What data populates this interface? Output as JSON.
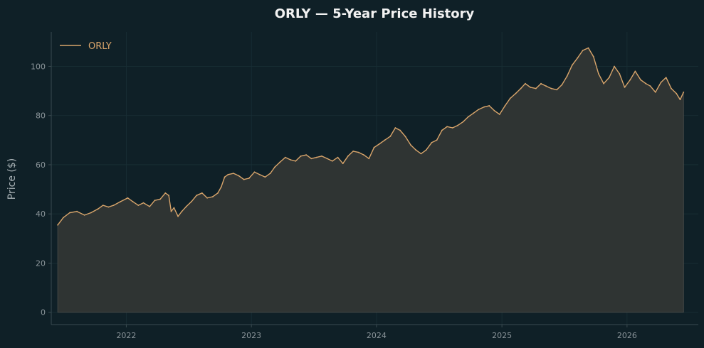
{
  "chart_data": {
    "type": "area",
    "title": "ORLY — 5-Year Price History",
    "xlabel": "",
    "ylabel": "Price ($)",
    "x_ticks": [
      "2022",
      "2023",
      "2024",
      "2025",
      "2026"
    ],
    "y_ticks": [
      0,
      20,
      40,
      60,
      80,
      100
    ],
    "xlim": [
      "2021-05-27",
      "2026-07-28"
    ],
    "ylim": [
      -5,
      114
    ],
    "grid": true,
    "legend_position": "top-left",
    "series": [
      {
        "name": "ORLY",
        "color": "#d9a56b",
        "fill_color": "#2f3433",
        "points": [
          [
            "2021-06-15",
            35.5
          ],
          [
            "2021-07-01",
            38.5
          ],
          [
            "2021-07-20",
            40.5
          ],
          [
            "2021-08-10",
            41.0
          ],
          [
            "2021-09-01",
            39.5
          ],
          [
            "2021-09-20",
            40.5
          ],
          [
            "2021-10-10",
            42.0
          ],
          [
            "2021-10-25",
            43.5
          ],
          [
            "2021-11-10",
            42.8
          ],
          [
            "2021-11-25",
            43.5
          ],
          [
            "2021-12-15",
            45.0
          ],
          [
            "2022-01-05",
            46.5
          ],
          [
            "2022-01-20",
            45.0
          ],
          [
            "2022-02-05",
            43.5
          ],
          [
            "2022-02-20",
            44.5
          ],
          [
            "2022-03-10",
            43.0
          ],
          [
            "2022-03-25",
            45.5
          ],
          [
            "2022-04-10",
            46.0
          ],
          [
            "2022-04-25",
            48.5
          ],
          [
            "2022-05-05",
            47.5
          ],
          [
            "2022-05-12",
            41.0
          ],
          [
            "2022-05-20",
            42.5
          ],
          [
            "2022-06-01",
            39.0
          ],
          [
            "2022-06-12",
            41.0
          ],
          [
            "2022-06-25",
            43.0
          ],
          [
            "2022-07-10",
            45.0
          ],
          [
            "2022-07-25",
            47.5
          ],
          [
            "2022-08-10",
            48.5
          ],
          [
            "2022-08-25",
            46.5
          ],
          [
            "2022-09-10",
            47.0
          ],
          [
            "2022-09-25",
            48.5
          ],
          [
            "2022-10-05",
            51.0
          ],
          [
            "2022-10-15",
            55.0
          ],
          [
            "2022-10-25",
            56.0
          ],
          [
            "2022-11-10",
            56.5
          ],
          [
            "2022-11-25",
            55.5
          ],
          [
            "2022-12-10",
            54.0
          ],
          [
            "2022-12-25",
            54.5
          ],
          [
            "2023-01-10",
            57.0
          ],
          [
            "2023-01-25",
            56.0
          ],
          [
            "2023-02-10",
            55.0
          ],
          [
            "2023-02-25",
            56.5
          ],
          [
            "2023-03-10",
            59.0
          ],
          [
            "2023-03-25",
            61.0
          ],
          [
            "2023-04-10",
            63.0
          ],
          [
            "2023-04-25",
            62.0
          ],
          [
            "2023-05-10",
            61.5
          ],
          [
            "2023-05-25",
            63.5
          ],
          [
            "2023-06-10",
            64.0
          ],
          [
            "2023-06-25",
            62.5
          ],
          [
            "2023-07-10",
            63.0
          ],
          [
            "2023-07-25",
            63.5
          ],
          [
            "2023-08-10",
            62.5
          ],
          [
            "2023-08-25",
            61.5
          ],
          [
            "2023-09-10",
            63.0
          ],
          [
            "2023-09-25",
            60.5
          ],
          [
            "2023-10-10",
            63.5
          ],
          [
            "2023-10-25",
            65.5
          ],
          [
            "2023-11-10",
            65.0
          ],
          [
            "2023-11-25",
            64.0
          ],
          [
            "2023-12-10",
            62.5
          ],
          [
            "2023-12-25",
            67.0
          ],
          [
            "2024-01-10",
            68.5
          ],
          [
            "2024-01-25",
            70.0
          ],
          [
            "2024-02-10",
            71.5
          ],
          [
            "2024-02-25",
            75.0
          ],
          [
            "2024-03-10",
            74.0
          ],
          [
            "2024-03-25",
            71.5
          ],
          [
            "2024-04-10",
            68.0
          ],
          [
            "2024-04-25",
            66.0
          ],
          [
            "2024-05-10",
            64.5
          ],
          [
            "2024-05-25",
            66.0
          ],
          [
            "2024-06-10",
            69.0
          ],
          [
            "2024-06-25",
            70.0
          ],
          [
            "2024-07-10",
            74.0
          ],
          [
            "2024-07-25",
            75.5
          ],
          [
            "2024-08-10",
            75.0
          ],
          [
            "2024-08-25",
            76.0
          ],
          [
            "2024-09-10",
            77.5
          ],
          [
            "2024-09-25",
            79.5
          ],
          [
            "2024-10-10",
            81.0
          ],
          [
            "2024-10-25",
            82.5
          ],
          [
            "2024-11-10",
            83.5
          ],
          [
            "2024-11-25",
            84.0
          ],
          [
            "2024-12-10",
            82.0
          ],
          [
            "2024-12-25",
            80.5
          ],
          [
            "2025-01-10",
            84.0
          ],
          [
            "2025-01-25",
            87.0
          ],
          [
            "2025-02-10",
            89.0
          ],
          [
            "2025-02-25",
            91.0
          ],
          [
            "2025-03-10",
            93.0
          ],
          [
            "2025-03-25",
            91.5
          ],
          [
            "2025-04-10",
            91.0
          ],
          [
            "2025-04-25",
            93.0
          ],
          [
            "2025-05-10",
            92.0
          ],
          [
            "2025-05-25",
            91.0
          ],
          [
            "2025-06-10",
            90.5
          ],
          [
            "2025-06-25",
            92.5
          ],
          [
            "2025-07-10",
            96.0
          ],
          [
            "2025-07-25",
            100.5
          ],
          [
            "2025-08-10",
            103.5
          ],
          [
            "2025-08-25",
            106.5
          ],
          [
            "2025-09-10",
            107.5
          ],
          [
            "2025-09-25",
            104.0
          ],
          [
            "2025-10-10",
            97.0
          ],
          [
            "2025-10-25",
            93.0
          ],
          [
            "2025-11-10",
            95.5
          ],
          [
            "2025-11-25",
            100.0
          ],
          [
            "2025-12-10",
            97.0
          ],
          [
            "2025-12-25",
            91.5
          ],
          [
            "2026-01-10",
            94.5
          ],
          [
            "2026-01-25",
            98.0
          ],
          [
            "2026-02-10",
            94.5
          ],
          [
            "2026-02-25",
            93.0
          ],
          [
            "2026-03-10",
            92.0
          ],
          [
            "2026-03-25",
            89.5
          ],
          [
            "2026-04-10",
            93.5
          ],
          [
            "2026-04-25",
            95.5
          ],
          [
            "2026-05-10",
            91.0
          ],
          [
            "2026-05-25",
            89.0
          ],
          [
            "2026-06-05",
            86.5
          ],
          [
            "2026-06-15",
            89.5
          ]
        ]
      }
    ]
  },
  "colors": {
    "background": "#0f2027",
    "axis": "#3a4a50",
    "grid": "#1a2f36",
    "tick_text": "#8a9499",
    "label_text": "#a9b2b6",
    "title_text": "#f2f2f2"
  }
}
